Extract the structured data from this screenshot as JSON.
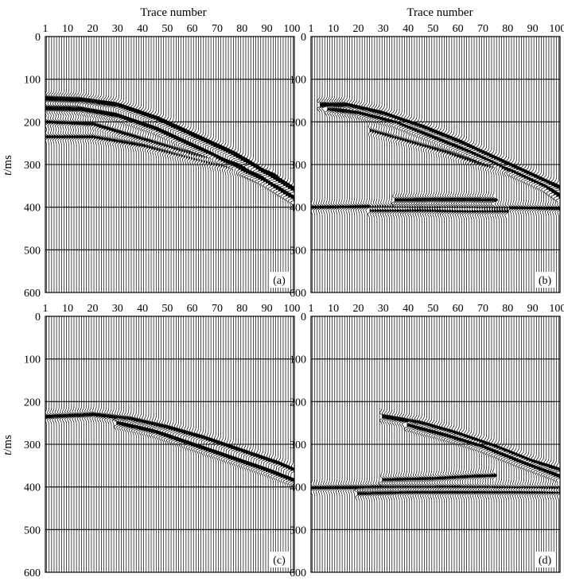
{
  "figure": {
    "xlabel": "Trace number",
    "ylabel_italic": "t",
    "ylabel_unit": "/ms"
  },
  "chart_data": [
    {
      "type": "seismic-section",
      "panel": "(a)",
      "xlabel": "Trace number",
      "ylabel": "t/ms",
      "xticks": [
        1,
        10,
        20,
        30,
        40,
        50,
        60,
        70,
        80,
        90,
        100
      ],
      "yticks": [
        0,
        100,
        200,
        300,
        400,
        500,
        600
      ],
      "xlim": [
        1,
        101
      ],
      "ylim": [
        0,
        600
      ],
      "traces": 101,
      "events": [
        {
          "points": [
            [
              1,
              145
            ],
            [
              15,
              148
            ],
            [
              30,
              160
            ],
            [
              45,
              190
            ],
            [
              60,
              230
            ],
            [
              75,
              270
            ],
            [
              90,
              320
            ],
            [
              101,
              360
            ]
          ],
          "strength": 1.0
        },
        {
          "points": [
            [
              1,
              168
            ],
            [
              15,
              170
            ],
            [
              30,
              185
            ],
            [
              45,
              215
            ],
            [
              60,
              255
            ],
            [
              75,
              295
            ],
            [
              90,
              340
            ],
            [
              101,
              380
            ]
          ],
          "strength": 0.85
        },
        {
          "points": [
            [
              1,
              200
            ],
            [
              20,
              205
            ],
            [
              40,
              240
            ],
            [
              60,
              275
            ],
            [
              80,
              305
            ],
            [
              92,
              325
            ]
          ],
          "strength": 0.45
        },
        {
          "points": [
            [
              1,
              235
            ],
            [
              20,
              235
            ],
            [
              40,
              255
            ],
            [
              60,
              285
            ],
            [
              80,
              315
            ],
            [
              92,
              335
            ]
          ],
          "strength": 0.4
        }
      ]
    },
    {
      "type": "seismic-section",
      "panel": "(b)",
      "xlabel": "Trace number",
      "ylabel": "t/ms",
      "xticks": [
        1,
        10,
        20,
        30,
        40,
        50,
        60,
        70,
        80,
        90,
        100
      ],
      "yticks": [
        0,
        100,
        200,
        300,
        400,
        500,
        600
      ],
      "xlim": [
        1,
        101
      ],
      "ylim": [
        0,
        600
      ],
      "traces": 101,
      "events": [
        {
          "points": [
            [
              5,
              160
            ],
            [
              15,
              160
            ],
            [
              30,
              180
            ],
            [
              45,
              210
            ],
            [
              60,
              245
            ],
            [
              75,
              285
            ],
            [
              90,
              325
            ],
            [
              101,
              355
            ]
          ],
          "strength": 1.0
        },
        {
          "points": [
            [
              8,
              170
            ],
            [
              20,
              178
            ],
            [
              35,
              200
            ],
            [
              50,
              235
            ],
            [
              65,
              270
            ],
            [
              80,
              310
            ],
            [
              95,
              350
            ],
            [
              101,
              375
            ]
          ],
          "strength": 0.85
        },
        {
          "points": [
            [
              25,
              220
            ],
            [
              40,
              245
            ],
            [
              55,
              270
            ],
            [
              70,
              300
            ],
            [
              80,
              315
            ]
          ],
          "strength": 0.35
        },
        {
          "points": [
            [
              1,
              400
            ],
            [
              30,
              398
            ],
            [
              60,
              400
            ],
            [
              90,
              402
            ],
            [
              101,
              403
            ]
          ],
          "strength": 0.45
        },
        {
          "points": [
            [
              35,
              383
            ],
            [
              50,
              382
            ],
            [
              65,
              382
            ],
            [
              75,
              383
            ]
          ],
          "strength": 0.6
        },
        {
          "points": [
            [
              25,
              408
            ],
            [
              45,
              408
            ],
            [
              65,
              410
            ],
            [
              80,
              410
            ]
          ],
          "strength": 0.55
        }
      ]
    },
    {
      "type": "seismic-section",
      "panel": "(c)",
      "xlabel": "Trace number",
      "ylabel": "t/ms",
      "xticks": [
        1,
        10,
        20,
        30,
        40,
        50,
        60,
        70,
        80,
        90,
        100
      ],
      "yticks": [
        0,
        100,
        200,
        300,
        400,
        500,
        600
      ],
      "xlim": [
        1,
        101
      ],
      "ylim": [
        0,
        600
      ],
      "traces": 101,
      "events": [
        {
          "points": [
            [
              1,
              235
            ],
            [
              20,
              230
            ],
            [
              35,
              240
            ],
            [
              50,
              260
            ],
            [
              65,
              285
            ],
            [
              80,
              315
            ],
            [
              95,
              345
            ],
            [
              101,
              360
            ]
          ],
          "strength": 0.6
        },
        {
          "points": [
            [
              30,
              250
            ],
            [
              45,
              270
            ],
            [
              60,
              300
            ],
            [
              75,
              330
            ],
            [
              90,
              360
            ],
            [
              101,
              385
            ]
          ],
          "strength": 0.8
        }
      ]
    },
    {
      "type": "seismic-section",
      "panel": "(d)",
      "xlabel": "Trace number",
      "ylabel": "t/ms",
      "xticks": [
        1,
        10,
        20,
        30,
        40,
        50,
        60,
        70,
        80,
        90,
        100
      ],
      "yticks": [
        0,
        100,
        200,
        300,
        400,
        500,
        600
      ],
      "xlim": [
        1,
        101
      ],
      "ylim": [
        0,
        600
      ],
      "traces": 101,
      "events": [
        {
          "points": [
            [
              30,
              235
            ],
            [
              45,
              250
            ],
            [
              60,
              275
            ],
            [
              75,
              305
            ],
            [
              90,
              340
            ],
            [
              101,
              360
            ]
          ],
          "strength": 0.85
        },
        {
          "points": [
            [
              40,
              255
            ],
            [
              55,
              278
            ],
            [
              70,
              305
            ],
            [
              85,
              340
            ],
            [
              101,
              375
            ]
          ],
          "strength": 0.95
        },
        {
          "points": [
            [
              1,
              402
            ],
            [
              30,
              400
            ],
            [
              60,
              400
            ],
            [
              90,
              402
            ],
            [
              101,
              403
            ]
          ],
          "strength": 0.5
        },
        {
          "points": [
            [
              30,
              383
            ],
            [
              50,
              380
            ],
            [
              65,
              375
            ],
            [
              75,
              373
            ]
          ],
          "strength": 0.45
        },
        {
          "points": [
            [
              20,
              415
            ],
            [
              40,
              412
            ],
            [
              60,
              412
            ],
            [
              80,
              412
            ],
            [
              101,
              413
            ]
          ],
          "strength": 0.55
        }
      ]
    }
  ]
}
